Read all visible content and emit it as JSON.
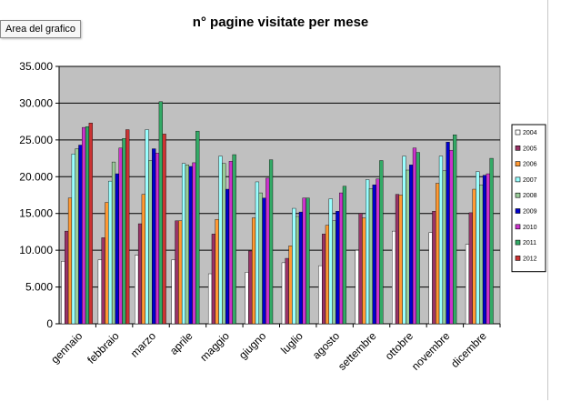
{
  "tooltip": {
    "label": "Area del grafico"
  },
  "chart_data": {
    "type": "bar",
    "title": "n° pagine visitate per mese",
    "xlabel": "",
    "ylabel": "",
    "ylim": [
      0,
      35000
    ],
    "ytick_labels": [
      "0",
      "5.000",
      "10.000",
      "15.000",
      "20.000",
      "25.000",
      "30.000",
      "35.000"
    ],
    "grid": true,
    "legend_position": "right",
    "plot_background": "#c0c0c0",
    "categories": [
      "gennaio",
      "febbraio",
      "marzo",
      "aprile",
      "maggio",
      "giugno",
      "luglio",
      "agosto",
      "settembre",
      "ottobre",
      "novembre",
      "dicembre"
    ],
    "series": [
      {
        "name": "2004",
        "color": "#ffffff",
        "values": [
          8500,
          8700,
          9300,
          8700,
          6800,
          7000,
          8300,
          7900,
          10000,
          12600,
          12400,
          10800
        ]
      },
      {
        "name": "2005",
        "color": "#993366",
        "values": [
          12600,
          11700,
          13600,
          14000,
          12200,
          9900,
          8900,
          12200,
          15000,
          17600,
          15300,
          15100
        ]
      },
      {
        "name": "2006",
        "color": "#ff9933",
        "values": [
          17100,
          16500,
          17600,
          14000,
          14200,
          14400,
          10600,
          13400,
          14400,
          17500,
          19100,
          18300
        ]
      },
      {
        "name": "2007",
        "color": "#99ffff",
        "values": [
          23100,
          19400,
          26400,
          21800,
          22800,
          19300,
          15700,
          17000,
          19600,
          22800,
          22800,
          20700
        ]
      },
      {
        "name": "2008",
        "color": "#99cc99",
        "values": [
          23800,
          22000,
          22200,
          21600,
          21800,
          17800,
          14600,
          14000,
          18400,
          20900,
          20800,
          18900
        ]
      },
      {
        "name": "2009",
        "color": "#0000cc",
        "values": [
          24300,
          20400,
          23800,
          21400,
          18300,
          17100,
          15200,
          15300,
          18900,
          21600,
          24700,
          20200
        ]
      },
      {
        "name": "2010",
        "color": "#cc33cc",
        "values": [
          26700,
          23900,
          23200,
          21900,
          22100,
          19800,
          17100,
          17800,
          19700,
          23900,
          23600,
          20400
        ]
      },
      {
        "name": "2011",
        "color": "#33aa66",
        "values": [
          26800,
          25200,
          30200,
          26200,
          23000,
          22300,
          17100,
          18700,
          22200,
          23300,
          25700,
          22500
        ]
      },
      {
        "name": "2012",
        "color": "#cc3333",
        "values": [
          27300,
          26400,
          25800,
          null,
          null,
          null,
          null,
          null,
          null,
          null,
          null,
          null
        ]
      }
    ]
  }
}
